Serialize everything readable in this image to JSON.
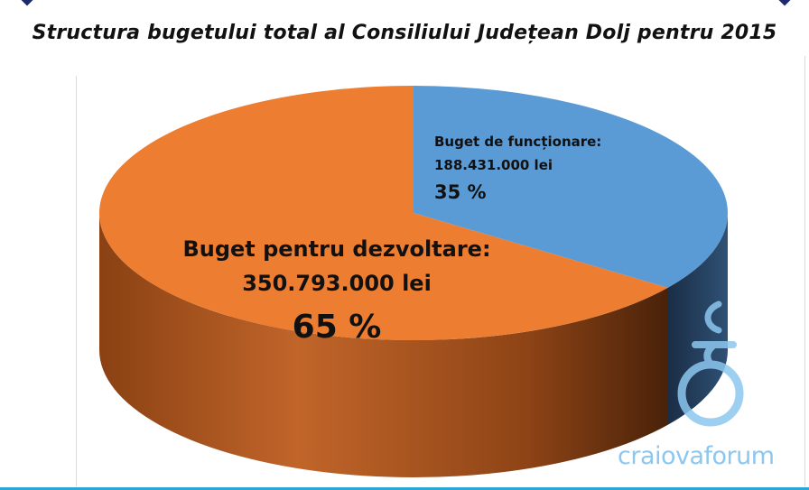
{
  "title": "Structura bugetului total al Consiliului Județean Dolj pentru 2015",
  "chart_data": {
    "type": "pie",
    "title": "Structura bugetului total al Consiliului Județean Dolj pentru 2015",
    "slices": [
      {
        "label": "Buget de funcționare:",
        "amount_text": "188.431.000 lei",
        "value": 188431000,
        "percent_text": "35 %",
        "percent": 35,
        "color": "#5b9bd5"
      },
      {
        "label": "Buget pentru dezvoltare:",
        "amount_text": "350.793.000 lei",
        "value": 350793000,
        "percent_text": "65 %",
        "percent": 65,
        "color": "#ed7d31"
      }
    ],
    "style": "3d"
  },
  "watermark": {
    "text": "craiovaforum",
    "color": "#8cc7ef"
  },
  "colors": {
    "accent_bar": "#2aa7d6",
    "corner_marks": "#1f2a6b"
  }
}
